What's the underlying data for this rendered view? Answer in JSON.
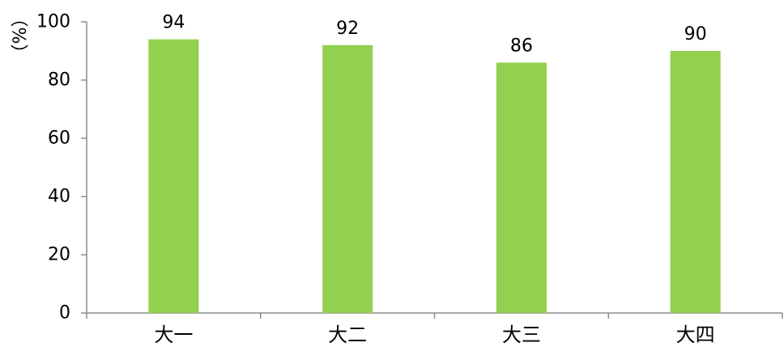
{
  "chart_data": {
    "type": "bar",
    "categories": [
      "大一",
      "大二",
      "大三",
      "大四"
    ],
    "values": [
      94,
      92,
      86,
      90
    ],
    "data_labels": [
      "94",
      "92",
      "86",
      "90"
    ],
    "title": "",
    "xlabel": "",
    "ylabel": "（%）",
    "ylim": [
      0,
      100
    ],
    "yticks": [
      0,
      20,
      40,
      60,
      80,
      100
    ],
    "ytick_labels": [
      "0",
      "20",
      "40",
      "60",
      "80",
      "100"
    ],
    "grid": false,
    "legend": "none",
    "bar_color": "#92d050",
    "axis_color": "#8c8c8c"
  }
}
